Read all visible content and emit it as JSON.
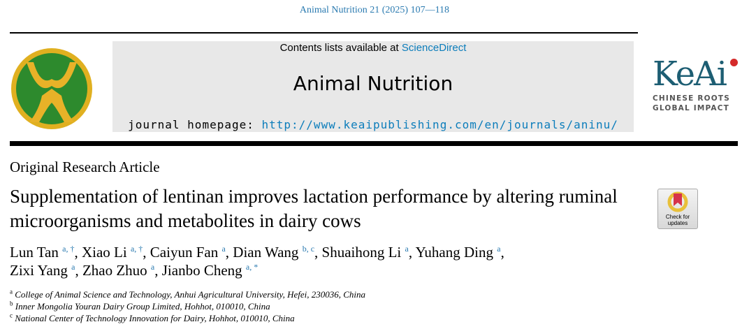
{
  "header": {
    "citation": "Animal Nutrition 21 (2025) 107—118",
    "contents_prefix": "Contents lists available at ",
    "contents_link": "ScienceDirect",
    "journal_name": "Animal Nutrition",
    "homepage_prefix": "journal homepage: ",
    "homepage_url": "http://www.keaipublishing.com/en/journals/aninu/"
  },
  "publisher": {
    "logo_text": "KeAi",
    "tagline1": "CHINESE ROOTS",
    "tagline2": "GLOBAL IMPACT"
  },
  "check_updates": {
    "line1": "Check for",
    "line2": "updates"
  },
  "article": {
    "type": "Original Research Article",
    "title": "Supplementation of lentinan improves lactation performance by altering ruminal microorganisms and metabolites in dairy cows",
    "authors": [
      {
        "name": "Lun Tan",
        "sup": "a, †",
        "sep": ", "
      },
      {
        "name": "Xiao Li",
        "sup": "a, †",
        "sep": ", "
      },
      {
        "name": "Caiyun Fan",
        "sup": "a",
        "sep": ", "
      },
      {
        "name": "Dian Wang",
        "sup": "b, c",
        "sep": ", "
      },
      {
        "name": "Shuaihong Li",
        "sup": "a",
        "sep": ", "
      },
      {
        "name": "Yuhang Ding",
        "sup": "a",
        "sep": ","
      },
      {
        "name": "Zixi Yang",
        "sup": "a",
        "sep": ", "
      },
      {
        "name": "Zhao Zhuo",
        "sup": "a",
        "sep": ", "
      },
      {
        "name": "Jianbo Cheng",
        "sup": "a, *",
        "sep": ""
      }
    ],
    "affiliations": [
      {
        "label": "a",
        "text": "College of Animal Science and Technology, Anhui Agricultural University, Hefei, 230036, China"
      },
      {
        "label": "b",
        "text": "Inner Mongolia Youran Dairy Group Limited, Hohhot, 010010, China"
      },
      {
        "label": "c",
        "text": "National Center of Technology Innovation for Dairy, Hohhot, 010010, China"
      }
    ]
  }
}
